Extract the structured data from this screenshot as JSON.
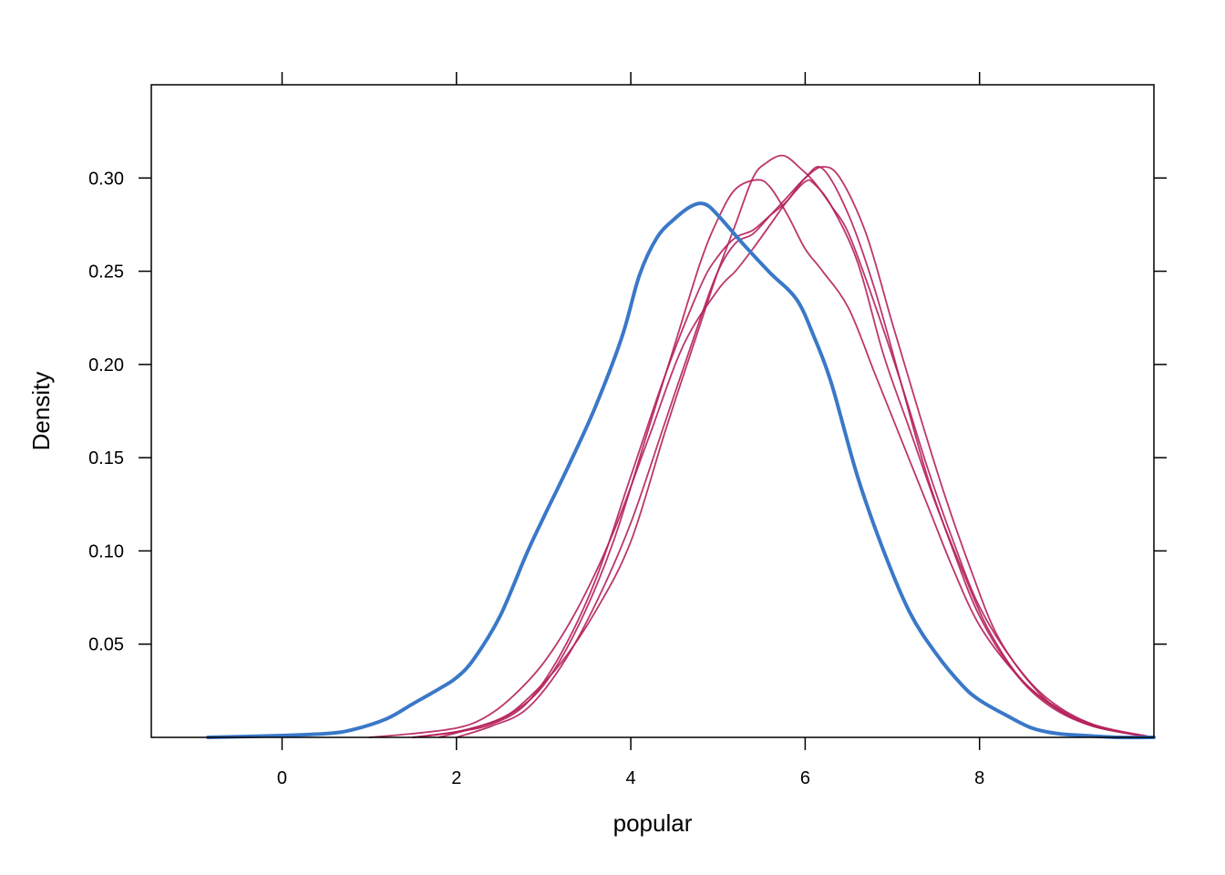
{
  "chart_data": {
    "type": "line",
    "title": "",
    "xlabel": "popular",
    "ylabel": "Density",
    "xlim": [
      -1.5,
      10
    ],
    "ylim": [
      0,
      0.35
    ],
    "x_ticks": [
      0,
      2,
      4,
      6,
      8
    ],
    "x_tick_labels": [
      "0",
      "2",
      "4",
      "6",
      "8"
    ],
    "y_ticks": [
      0.05,
      0.1,
      0.15,
      0.2,
      0.25,
      0.3
    ],
    "y_tick_labels": [
      "0.05",
      "0.10",
      "0.15",
      "0.20",
      "0.25",
      "0.30"
    ],
    "grid": false,
    "legend": "none",
    "colors": {
      "observed": "#3a78c8",
      "imputed": "#b5205a"
    },
    "series": [
      {
        "role": "observed",
        "x": [
          -0.85,
          0.0,
          0.5,
          0.8,
          1.2,
          1.5,
          1.8,
          2.0,
          2.2,
          2.5,
          2.8,
          3.0,
          3.3,
          3.6,
          3.9,
          4.1,
          4.3,
          4.5,
          4.7,
          4.85,
          5.0,
          5.3,
          5.6,
          5.9,
          6.1,
          6.3,
          6.6,
          6.9,
          7.2,
          7.5,
          7.8,
          8.0,
          8.3,
          8.6,
          8.9,
          9.2,
          9.6,
          10.0
        ],
        "y": [
          0.0,
          0.001,
          0.002,
          0.004,
          0.01,
          0.018,
          0.026,
          0.032,
          0.042,
          0.065,
          0.098,
          0.118,
          0.147,
          0.178,
          0.215,
          0.248,
          0.268,
          0.278,
          0.285,
          0.286,
          0.28,
          0.264,
          0.249,
          0.235,
          0.215,
          0.19,
          0.14,
          0.1,
          0.067,
          0.045,
          0.028,
          0.02,
          0.012,
          0.005,
          0.002,
          0.001,
          0.0,
          0.0
        ]
      },
      {
        "role": "imputed",
        "x": [
          1.0,
          1.5,
          2.0,
          2.3,
          2.6,
          3.0,
          3.4,
          3.8,
          4.2,
          4.6,
          5.0,
          5.2,
          5.4,
          5.6,
          5.8,
          6.0,
          6.1,
          6.3,
          6.6,
          6.9,
          7.2,
          7.5,
          7.8,
          8.1,
          8.5,
          9.0,
          9.5,
          10.0
        ],
        "y": [
          0.0,
          0.002,
          0.005,
          0.01,
          0.02,
          0.04,
          0.07,
          0.11,
          0.16,
          0.21,
          0.24,
          0.25,
          0.262,
          0.275,
          0.288,
          0.298,
          0.297,
          0.285,
          0.255,
          0.205,
          0.165,
          0.125,
          0.09,
          0.058,
          0.03,
          0.013,
          0.004,
          0.0
        ]
      },
      {
        "role": "imputed",
        "x": [
          1.5,
          2.0,
          2.4,
          2.8,
          3.2,
          3.6,
          4.0,
          4.4,
          4.8,
          5.0,
          5.2,
          5.4,
          5.6,
          5.8,
          6.0,
          6.2,
          6.5,
          6.8,
          7.1,
          7.4,
          7.7,
          8.0,
          8.4,
          8.8,
          9.3,
          10.0
        ],
        "y": [
          0.0,
          0.003,
          0.007,
          0.018,
          0.045,
          0.085,
          0.14,
          0.195,
          0.242,
          0.258,
          0.268,
          0.272,
          0.28,
          0.288,
          0.3,
          0.305,
          0.28,
          0.24,
          0.19,
          0.14,
          0.1,
          0.065,
          0.035,
          0.017,
          0.006,
          0.0
        ]
      },
      {
        "role": "imputed",
        "x": [
          1.5,
          2.0,
          2.5,
          2.8,
          3.2,
          3.6,
          4.0,
          4.4,
          4.8,
          5.0,
          5.2,
          5.4,
          5.55,
          5.75,
          5.95,
          6.1,
          6.3,
          6.5,
          6.8,
          7.1,
          7.4,
          7.7,
          8.0,
          8.4,
          8.8,
          9.3,
          10.0
        ],
        "y": [
          0.0,
          0.003,
          0.01,
          0.02,
          0.04,
          0.068,
          0.105,
          0.165,
          0.222,
          0.25,
          0.275,
          0.3,
          0.308,
          0.312,
          0.305,
          0.298,
          0.285,
          0.27,
          0.232,
          0.19,
          0.145,
          0.105,
          0.07,
          0.04,
          0.02,
          0.007,
          0.0
        ]
      },
      {
        "role": "imputed",
        "x": [
          1.8,
          2.2,
          2.6,
          3.0,
          3.4,
          3.8,
          4.2,
          4.5,
          4.8,
          5.0,
          5.2,
          5.45,
          5.6,
          5.8,
          6.0,
          6.2,
          6.5,
          6.8,
          7.1,
          7.4,
          7.7,
          8.0,
          8.4,
          8.8,
          9.3,
          10.0
        ],
        "y": [
          0.0,
          0.005,
          0.012,
          0.028,
          0.06,
          0.105,
          0.165,
          0.21,
          0.255,
          0.278,
          0.294,
          0.299,
          0.295,
          0.28,
          0.262,
          0.25,
          0.23,
          0.195,
          0.16,
          0.125,
          0.09,
          0.06,
          0.035,
          0.018,
          0.006,
          0.0
        ]
      },
      {
        "role": "imputed",
        "x": [
          2.0,
          2.4,
          2.8,
          3.2,
          3.6,
          4.0,
          4.4,
          4.8,
          5.0,
          5.2,
          5.4,
          5.6,
          5.8,
          6.0,
          6.2,
          6.4,
          6.7,
          7.0,
          7.3,
          7.6,
          7.9,
          8.2,
          8.6,
          9.0,
          9.5,
          10.0
        ],
        "y": [
          0.0,
          0.006,
          0.015,
          0.038,
          0.072,
          0.115,
          0.17,
          0.225,
          0.25,
          0.265,
          0.27,
          0.28,
          0.29,
          0.3,
          0.306,
          0.3,
          0.27,
          0.222,
          0.175,
          0.13,
          0.09,
          0.055,
          0.028,
          0.012,
          0.004,
          0.0
        ]
      }
    ]
  }
}
